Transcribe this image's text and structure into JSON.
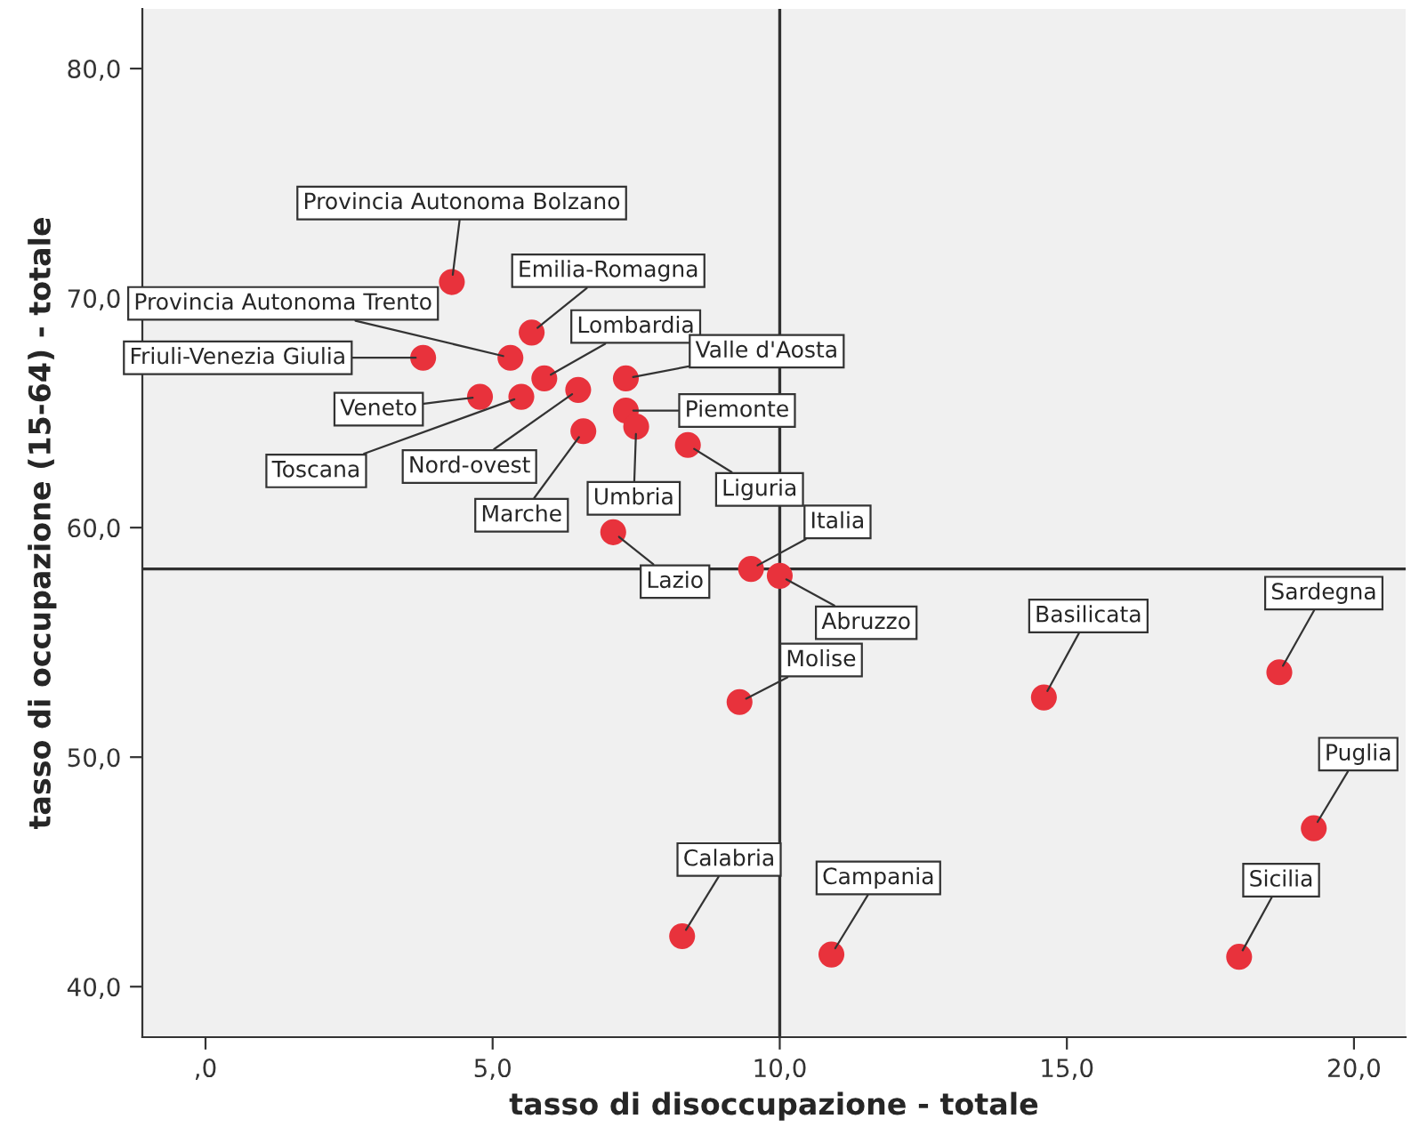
{
  "chart_data": {
    "type": "scatter",
    "xlabel": "tasso di disoccupazione - totale",
    "ylabel": "tasso di occupazione (15-64) - totale",
    "x": [
      4.29,
      5.68,
      5.31,
      3.79,
      5.9,
      7.32,
      4.78,
      5.5,
      6.49,
      6.58,
      7.32,
      7.5,
      8.4,
      7.1,
      9.5,
      10.0,
      9.3,
      14.6,
      18.7,
      19.3,
      18.0,
      8.3,
      10.9
    ],
    "series": [
      {
        "color": "#e8323c",
        "values": [
          70.7,
          68.5,
          67.4,
          67.4,
          66.5,
          66.5,
          65.7,
          65.7,
          66.0,
          64.2,
          65.1,
          64.4,
          63.6,
          59.8,
          58.2,
          57.9,
          52.4,
          52.6,
          53.7,
          46.9,
          41.3,
          42.2,
          41.4
        ]
      }
    ],
    "annotations": [
      {
        "text": "Provincia Autonoma Bolzano",
        "x": 4.29,
        "y": 70.7
      },
      {
        "text": "Emilia-Romagna",
        "x": 5.68,
        "y": 68.5
      },
      {
        "text": "Provincia Autonoma Trento",
        "x": 5.31,
        "y": 67.4
      },
      {
        "text": "Friuli-Venezia Giulia",
        "x": 3.79,
        "y": 67.4
      },
      {
        "text": "Lombardia",
        "x": 5.9,
        "y": 66.5
      },
      {
        "text": "Valle d'Aosta",
        "x": 7.32,
        "y": 66.5
      },
      {
        "text": "Veneto",
        "x": 4.78,
        "y": 65.7
      },
      {
        "text": "Toscana",
        "x": 5.5,
        "y": 65.7
      },
      {
        "text": "Nord-ovest",
        "x": 6.49,
        "y": 66.0
      },
      {
        "text": "Marche",
        "x": 6.58,
        "y": 64.2
      },
      {
        "text": "Piemonte",
        "x": 7.32,
        "y": 65.1
      },
      {
        "text": "Umbria",
        "x": 7.5,
        "y": 64.4
      },
      {
        "text": "Liguria",
        "x": 8.4,
        "y": 63.6
      },
      {
        "text": "Lazio",
        "x": 7.1,
        "y": 59.8
      },
      {
        "text": "Italia",
        "x": 9.5,
        "y": 58.2
      },
      {
        "text": "Abruzzo",
        "x": 10.0,
        "y": 57.9
      },
      {
        "text": "Molise",
        "x": 9.3,
        "y": 52.4
      },
      {
        "text": "Basilicata",
        "x": 14.6,
        "y": 52.6
      },
      {
        "text": "Sardegna",
        "x": 18.7,
        "y": 53.7
      },
      {
        "text": "Puglia",
        "x": 19.3,
        "y": 46.9
      },
      {
        "text": "Sicilia",
        "x": 18.0,
        "y": 41.3
      },
      {
        "text": "Calabria",
        "x": 8.3,
        "y": 42.2
      },
      {
        "text": "Campania",
        "x": 10.9,
        "y": 41.4
      }
    ],
    "xlim": [
      -1.1,
      20.9
    ],
    "ylim": [
      37.8,
      82.6
    ],
    "xticks": [
      {
        "value": 0,
        "label": ",0"
      },
      {
        "value": 5,
        "label": "5,0"
      },
      {
        "value": 10,
        "label": "10,0"
      },
      {
        "value": 15,
        "label": "15,0"
      },
      {
        "value": 20,
        "label": "20,0"
      }
    ],
    "yticks": [
      {
        "value": 40,
        "label": "40,0"
      },
      {
        "value": 50,
        "label": "50,0"
      },
      {
        "value": 60,
        "label": "60,0"
      },
      {
        "value": 70,
        "label": "70,0"
      },
      {
        "value": 80,
        "label": "80,0"
      }
    ],
    "ref_lines": [
      {
        "axis": "x",
        "value": 10.0,
        "color": "#303030"
      },
      {
        "axis": "y",
        "value": 58.2,
        "color": "#303030"
      }
    ],
    "marker": "circle",
    "grid": false,
    "legend": false
  }
}
